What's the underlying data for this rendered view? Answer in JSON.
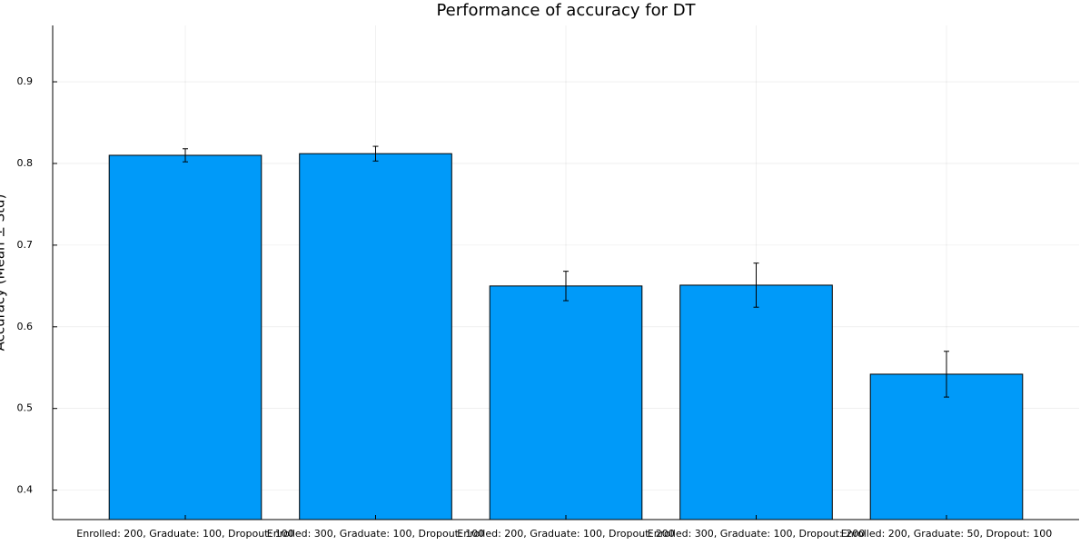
{
  "chart_data": {
    "type": "bar",
    "title": "Performance of accuracy for DT",
    "ylabel": "Accuracy (Mean ± Std)",
    "categories": [
      "Enrolled: 200, Graduate: 100, Dropout: 100",
      "Enrolled: 300, Graduate: 100, Dropout: 100",
      "Enrolled: 200, Graduate: 100, Dropout: 200",
      "Enrolled: 300, Graduate: 100, Dropout: 200",
      "Enrolled: 200, Graduate: 50, Dropout: 100"
    ],
    "values": [
      0.81,
      0.812,
      0.65,
      0.651,
      0.542
    ],
    "errors": [
      0.008,
      0.009,
      0.018,
      0.027,
      0.028
    ],
    "color": "#009af9",
    "ylim": [
      0.364,
      0.969
    ],
    "yticks": [
      0.4,
      0.5,
      0.6,
      0.7,
      0.8,
      0.9
    ],
    "grid": true
  }
}
